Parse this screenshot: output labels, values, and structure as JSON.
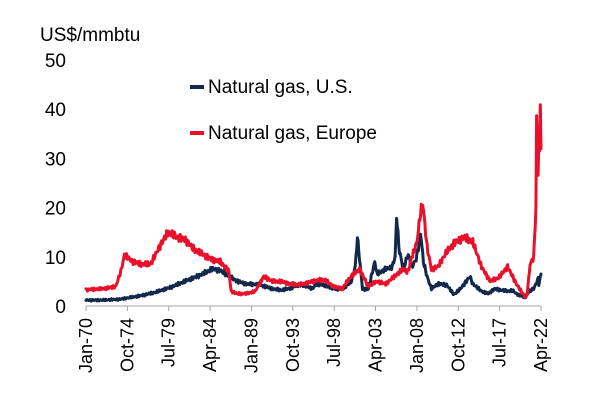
{
  "chart_data": {
    "type": "line",
    "title": "",
    "ylabel": "US$/mmbtu",
    "xlabel": "",
    "ylim": [
      0,
      50
    ],
    "yticks": [
      0,
      10,
      20,
      30,
      40,
      50
    ],
    "xlim": [
      "1970-01",
      "2022-04"
    ],
    "xticks": [
      "Jan-70",
      "Oct-74",
      "Jul-79",
      "Apr-84",
      "Jan-89",
      "Oct-93",
      "Jul-98",
      "Apr-03",
      "Jan-08",
      "Oct-12",
      "Jul-17",
      "Apr-22"
    ],
    "grid": false,
    "legend_position": "top-center",
    "series": [
      {
        "name": "Natural gas, U.S.",
        "color": "#13294b",
        "x": [
          "1970-01",
          "1972-01",
          "1974-01",
          "1976-01",
          "1978-01",
          "1980-01",
          "1982-01",
          "1983-06",
          "1984-06",
          "1985-06",
          "1986-06",
          "1987-06",
          "1988-06",
          "1990-01",
          "1991-06",
          "1992-06",
          "1993-06",
          "1994-06",
          "1995-06",
          "1996-01",
          "1996-06",
          "1997-06",
          "1998-06",
          "1999-06",
          "2000-06",
          "2000-12",
          "2001-03",
          "2001-10",
          "2002-06",
          "2003-03",
          "2003-06",
          "2004-06",
          "2005-03",
          "2005-07",
          "2005-09",
          "2005-10",
          "2005-12",
          "2006-06",
          "2007-01",
          "2007-06",
          "2007-12",
          "2008-03",
          "2008-06",
          "2008-10",
          "2009-03",
          "2009-09",
          "2010-06",
          "2011-06",
          "2012-04",
          "2013-01",
          "2014-02",
          "2014-06",
          "2015-06",
          "2016-03",
          "2016-12",
          "2017-06",
          "2018-06",
          "2019-01",
          "2019-06",
          "2020-06",
          "2020-12",
          "2021-06",
          "2021-12",
          "2022-01",
          "2022-02",
          "2022-04"
        ],
        "values": [
          1.2,
          1.2,
          1.4,
          2.0,
          2.8,
          4.0,
          5.5,
          6.5,
          7.5,
          7.3,
          6.0,
          5.0,
          4.5,
          4.3,
          3.5,
          3.2,
          3.6,
          4.3,
          4.0,
          3.5,
          4.5,
          4.2,
          3.5,
          3.5,
          4.8,
          8.0,
          14.0,
          3.5,
          3.4,
          9.0,
          6.5,
          7.5,
          8.0,
          10.0,
          18.0,
          17.0,
          12.0,
          7.5,
          10.5,
          8.0,
          9.5,
          12.0,
          15.0,
          9.0,
          6.0,
          3.5,
          4.5,
          4.3,
          2.3,
          3.5,
          6.0,
          4.5,
          3.0,
          2.5,
          3.5,
          3.3,
          3.0,
          3.2,
          2.5,
          1.7,
          3.0,
          3.5,
          5.5,
          4.5,
          5.0,
          6.5
        ]
      },
      {
        "name": "Natural gas, Europe",
        "color": "#e8102a",
        "x": [
          "1970-01",
          "1972-01",
          "1973-06",
          "1974-01",
          "1974-06",
          "1975-06",
          "1976-06",
          "1977-06",
          "1978-06",
          "1979-06",
          "1980-06",
          "1981-06",
          "1982-06",
          "1983-06",
          "1984-06",
          "1985-06",
          "1986-06",
          "1986-09",
          "1987-06",
          "1988-06",
          "1989-06",
          "1990-06",
          "1991-06",
          "1992-06",
          "1993-06",
          "1994-06",
          "1995-06",
          "1996-06",
          "1997-06",
          "1998-06",
          "1999-06",
          "2000-06",
          "2001-06",
          "2002-06",
          "2003-06",
          "2004-06",
          "2005-06",
          "2006-06",
          "2007-01",
          "2007-06",
          "2008-01",
          "2008-06",
          "2008-09",
          "2009-03",
          "2009-09",
          "2010-06",
          "2011-06",
          "2012-06",
          "2013-06",
          "2014-06",
          "2015-06",
          "2016-06",
          "2017-06",
          "2018-06",
          "2019-06",
          "2020-06",
          "2020-09",
          "2021-01",
          "2021-06",
          "2021-09",
          "2021-10",
          "2021-12",
          "2022-01",
          "2022-02",
          "2022-03",
          "2022-04"
        ],
        "values": [
          3.3,
          3.5,
          4.0,
          7.0,
          10.3,
          9.0,
          8.5,
          8.5,
          12.0,
          15.0,
          14.0,
          13.5,
          11.5,
          10.5,
          9.5,
          9.0,
          7.0,
          3.0,
          2.5,
          2.5,
          3.0,
          6.0,
          5.0,
          5.0,
          4.5,
          4.3,
          4.7,
          5.2,
          5.3,
          4.0,
          3.5,
          6.0,
          7.5,
          4.0,
          5.0,
          4.5,
          6.0,
          7.5,
          7.0,
          10.0,
          13.0,
          19.0,
          21.0,
          12.0,
          7.5,
          8.0,
          11.0,
          13.0,
          14.0,
          13.0,
          8.0,
          5.0,
          5.8,
          8.0,
          4.5,
          1.8,
          2.5,
          8.5,
          10.0,
          20.0,
          38.0,
          27.0,
          35.0,
          30.0,
          41.0,
          32.0
        ]
      }
    ]
  }
}
